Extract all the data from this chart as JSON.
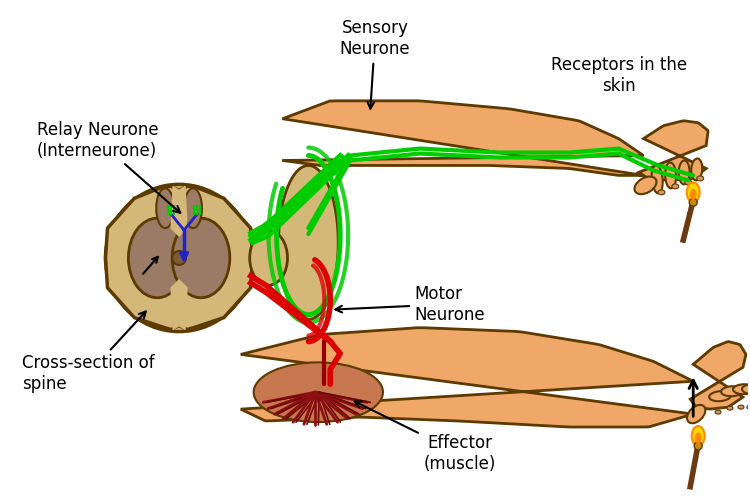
{
  "bg_color": "#ffffff",
  "skin_color": "#F0A868",
  "skin_outline": "#5C3A00",
  "spine_outer": "#D4B87A",
  "spine_gray_matter": "#9B7B65",
  "spine_white_matter": "#C8A060",
  "green_neurone": "#00CC00",
  "red_neurone": "#DD0000",
  "blue_neurone": "#2222CC",
  "flame_yellow": "#FFD700",
  "flame_orange": "#FF8C00",
  "match_color": "#6B3A10",
  "muscle_color": "#8B1010",
  "muscle_outer": "#C04040",
  "nail_color": "#D2956A",
  "label_fontsize": 12,
  "labels": {
    "sensory_neurone": "Sensory\nNeurone",
    "relay_neurone": "Relay Neurone\n(Interneurone)",
    "cross_section": "Cross-section of\nspine",
    "motor_neurone": "Motor\nNeurone",
    "receptors": "Receptors in the\nskin",
    "effector": "Effector\n(muscle)"
  }
}
